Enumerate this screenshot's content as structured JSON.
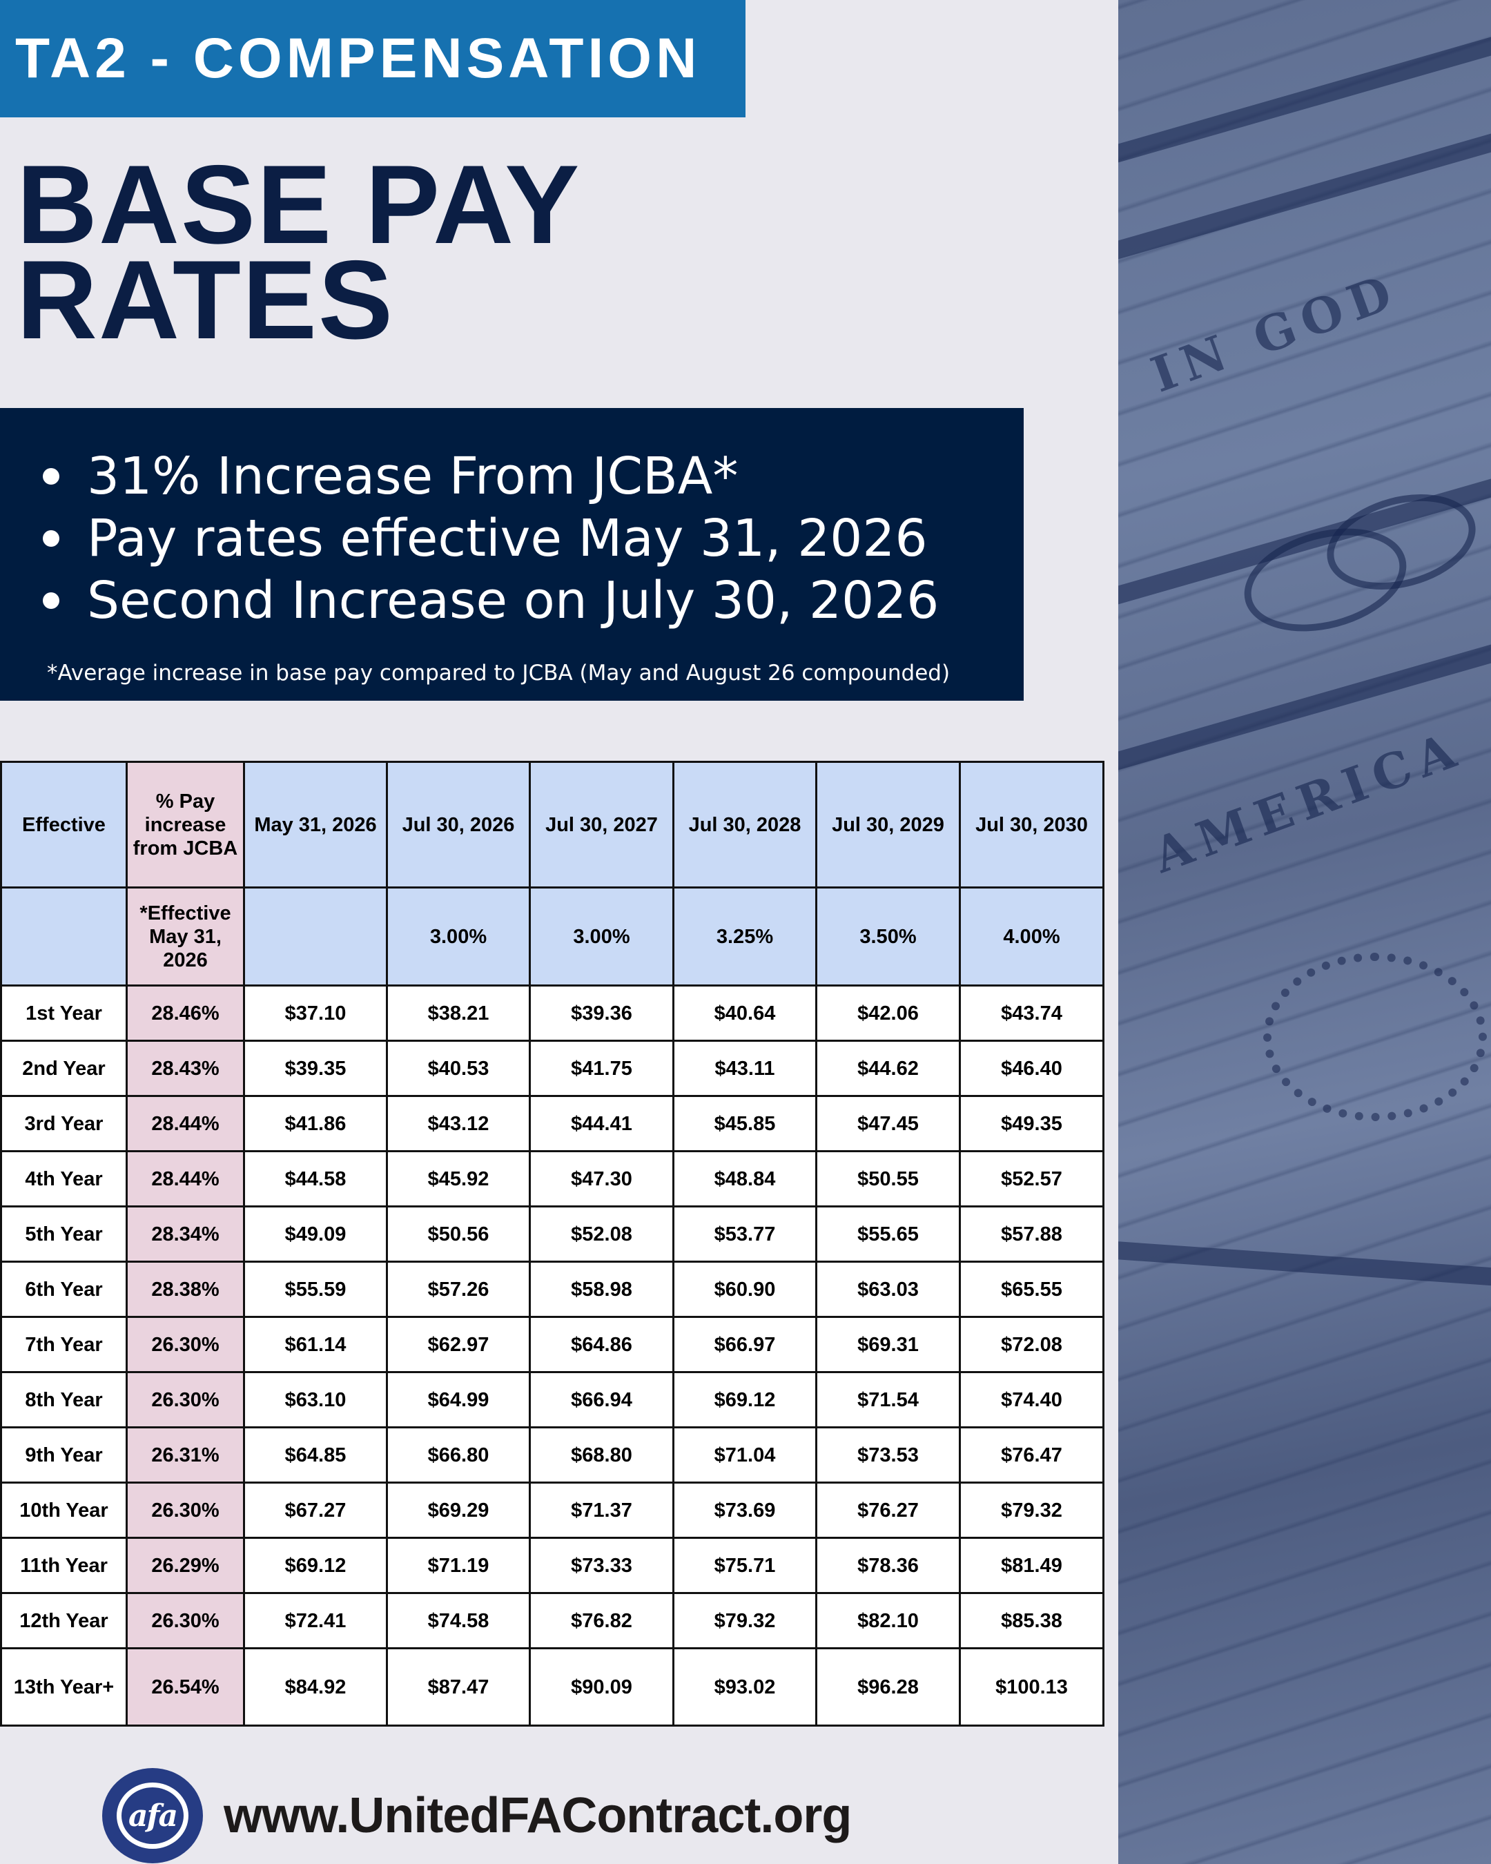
{
  "header": {
    "banner": "TA2 - COMPENSATION",
    "title_line1": "BASE PAY",
    "title_line2": "RATES"
  },
  "highlights": {
    "bullets": [
      "31% Increase From JCBA*",
      "Pay rates effective May 31, 2026",
      "Second Increase on July 30, 2026"
    ],
    "footnote": "*Average increase in base pay compared to JCBA (May and August 26 compounded)"
  },
  "table": {
    "headers": [
      "Effective",
      "% Pay increase from JCBA",
      "May 31, 2026",
      "Jul 30, 2026",
      "Jul 30, 2027",
      "Jul 30, 2028",
      "Jul 30, 2029",
      "Jul 30, 2030"
    ],
    "increase_row": [
      "",
      "*Effective May 31, 2026",
      "",
      "3.00%",
      "3.00%",
      "3.25%",
      "3.50%",
      "4.00%"
    ],
    "rows": [
      [
        "1st Year",
        "28.46%",
        "$37.10",
        "$38.21",
        "$39.36",
        "$40.64",
        "$42.06",
        "$43.74"
      ],
      [
        "2nd Year",
        "28.43%",
        "$39.35",
        "$40.53",
        "$41.75",
        "$43.11",
        "$44.62",
        "$46.40"
      ],
      [
        "3rd Year",
        "28.44%",
        "$41.86",
        "$43.12",
        "$44.41",
        "$45.85",
        "$47.45",
        "$49.35"
      ],
      [
        "4th Year",
        "28.44%",
        "$44.58",
        "$45.92",
        "$47.30",
        "$48.84",
        "$50.55",
        "$52.57"
      ],
      [
        "5th Year",
        "28.34%",
        "$49.09",
        "$50.56",
        "$52.08",
        "$53.77",
        "$55.65",
        "$57.88"
      ],
      [
        "6th Year",
        "28.38%",
        "$55.59",
        "$57.26",
        "$58.98",
        "$60.90",
        "$63.03",
        "$65.55"
      ],
      [
        "7th Year",
        "26.30%",
        "$61.14",
        "$62.97",
        "$64.86",
        "$66.97",
        "$69.31",
        "$72.08"
      ],
      [
        "8th Year",
        "26.30%",
        "$63.10",
        "$64.99",
        "$66.94",
        "$69.12",
        "$71.54",
        "$74.40"
      ],
      [
        "9th Year",
        "26.31%",
        "$64.85",
        "$66.80",
        "$68.80",
        "$71.04",
        "$73.53",
        "$76.47"
      ],
      [
        "10th Year",
        "26.30%",
        "$67.27",
        "$69.29",
        "$71.37",
        "$73.69",
        "$76.27",
        "$79.32"
      ],
      [
        "11th Year",
        "26.29%",
        "$69.12",
        "$71.19",
        "$73.33",
        "$75.71",
        "$78.36",
        "$81.49"
      ],
      [
        "12th Year",
        "26.30%",
        "$72.41",
        "$74.58",
        "$76.82",
        "$79.32",
        "$82.10",
        "$85.38"
      ],
      [
        "13th Year+",
        "26.54%",
        "$84.92",
        "$87.47",
        "$90.09",
        "$93.02",
        "$96.28",
        "$100.13"
      ]
    ]
  },
  "footer": {
    "logo_text": "afa",
    "url": "www.UnitedFAContract.org"
  },
  "colors": {
    "banner_blue": "#1671b0",
    "navy": "#001c40",
    "header_cell_blue": "#c9daf6",
    "pink_column": "#ead3de",
    "background": "#e9e8ee"
  }
}
